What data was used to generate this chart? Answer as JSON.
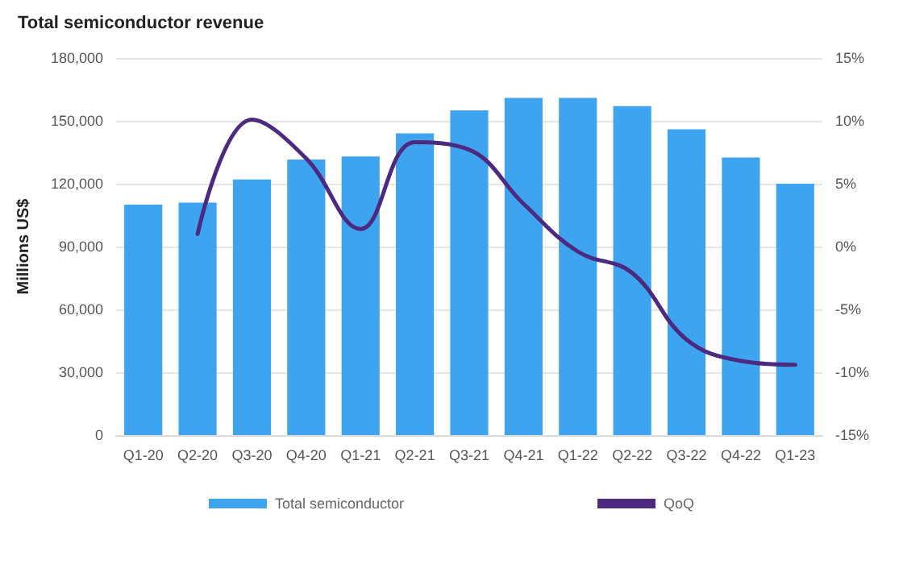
{
  "chart_data": {
    "type": "bar",
    "title": "Total semiconductor revenue",
    "ylabel": "Millions US$",
    "categories": [
      "Q1-20",
      "Q2-20",
      "Q3-20",
      "Q4-20",
      "Q1-21",
      "Q2-21",
      "Q3-21",
      "Q4-21",
      "Q1-22",
      "Q2-22",
      "Q3-22",
      "Q4-22",
      "Q1-23"
    ],
    "series": [
      {
        "name": "Total semiconductor",
        "color": "#3fa4ef",
        "values": [
          110000,
          111000,
          122000,
          131500,
          133000,
          144000,
          155000,
          161000,
          161000,
          157000,
          146000,
          132500,
          120000
        ]
      },
      {
        "name": "QoQ",
        "type": "line",
        "axis": "y2",
        "color": "#4b2a7f",
        "values": [
          null,
          1.0,
          10.1,
          7.0,
          1.4,
          8.3,
          7.7,
          3.4,
          -0.4,
          -2.1,
          -7.4,
          -9.1,
          -9.4
        ]
      }
    ],
    "ylim": [
      0,
      180000
    ],
    "yticks": [
      0,
      {
        "value": 30000,
        "label": "30,000"
      },
      {
        "value": 60000,
        "label": "60,000"
      },
      {
        "value": 90000,
        "label": "90,000"
      },
      {
        "value": 120000,
        "label": "120,000"
      },
      {
        "value": 150000,
        "label": "150,000"
      },
      {
        "value": 180000,
        "label": "180,000"
      }
    ],
    "y2lim": [
      -15,
      15
    ],
    "y2ticks": [
      {
        "value": -15,
        "label": "-15%"
      },
      {
        "value": -10,
        "label": "-10%"
      },
      {
        "value": -5,
        "label": "-5%"
      },
      {
        "value": 0,
        "label": "0%"
      },
      {
        "value": 5,
        "label": "5%"
      },
      {
        "value": 10,
        "label": "10%"
      },
      {
        "value": 15,
        "label": "15%"
      }
    ],
    "grid": "y",
    "legend": "bottom",
    "marker": "none",
    "line_style": "solid"
  }
}
